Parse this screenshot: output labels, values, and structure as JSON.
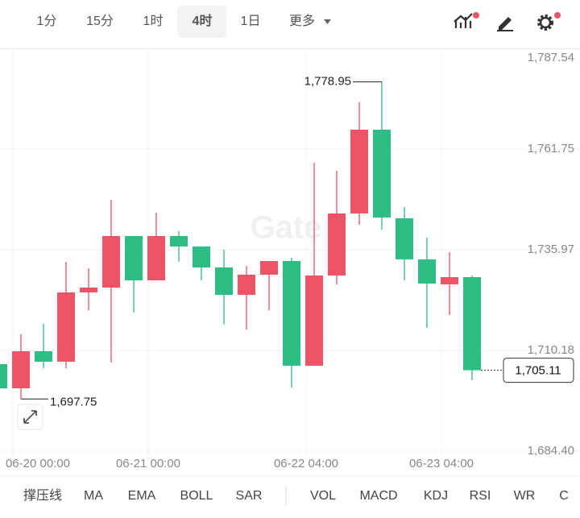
{
  "toolbar": {
    "intervals": [
      "1分",
      "15分",
      "1时",
      "4时",
      "1日"
    ],
    "selected": "4时",
    "more": "更多"
  },
  "indicators": [
    "撑压线",
    "MA",
    "EMA",
    "BOLL",
    "SAR",
    "VOL",
    "MACD",
    "KDJ",
    "RSI",
    "WR",
    "C"
  ],
  "chart_data": {
    "type": "candlestick",
    "watermark": "Gate",
    "x": [
      "06-20 00:00",
      null,
      null,
      null,
      null,
      null,
      "06-21 00:00",
      null,
      null,
      null,
      null,
      null,
      null,
      "06-22 04:00",
      null,
      null,
      null,
      null,
      null,
      "06-23 04:00",
      null,
      null
    ],
    "open": [
      1706.68,
      1700.49,
      1709.98,
      1707.3,
      1725.04,
      1726.28,
      1739.48,
      1728.13,
      1739.48,
      1736.8,
      1731.43,
      1724.42,
      1729.58,
      1733.08,
      1706.27,
      1729.37,
      1745.25,
      1766.71,
      1744.02,
      1733.5,
      1727.1,
      1728.96
    ],
    "high": [
      1706.68,
      1714.31,
      1717.0,
      1732.88,
      1731.22,
      1748.76,
      1739.48,
      1745.46,
      1740.72,
      1736.8,
      1735.97,
      1731.85,
      1733.08,
      1733.91,
      1758.25,
      1756.19,
      1773.72,
      1778.95,
      1746.9,
      1739.07,
      1735.35,
      1729.37
    ],
    "low": [
      1700.49,
      1697.75,
      1705.65,
      1705.65,
      1720.5,
      1707.09,
      1719.88,
      1728.13,
      1732.88,
      1728.13,
      1716.79,
      1715.55,
      1720.5,
      1700.7,
      1706.27,
      1727.1,
      1742.37,
      1741.13,
      1728.13,
      1715.96,
      1719.26,
      1702.56
    ],
    "close": [
      1700.49,
      1709.98,
      1707.3,
      1725.04,
      1726.28,
      1739.48,
      1728.13,
      1739.48,
      1736.8,
      1731.43,
      1724.42,
      1729.58,
      1733.08,
      1706.27,
      1729.37,
      1745.25,
      1766.71,
      1744.22,
      1733.5,
      1727.31,
      1728.96,
      1705.11
    ],
    "up_color": "#ef5466",
    "down_color": "#2ebd85",
    "ylim": [
      1684.4,
      1787.54
    ],
    "yticks": [
      {
        "value": 1684.4,
        "label": "1,684.40"
      },
      {
        "value": 1710.18,
        "label": "1,710.18"
      },
      {
        "value": 1735.97,
        "label": "1,735.97"
      },
      {
        "value": 1761.75,
        "label": "1,761.75"
      },
      {
        "value": 1787.54,
        "label": "1,787.54"
      }
    ],
    "grid": true,
    "max_label": {
      "value": 1778.95,
      "label": "1,778.95"
    },
    "min_label": {
      "value": 1697.75,
      "label": "1,697.75"
    },
    "last_price": {
      "value": 1705.11,
      "label": "1,705.11"
    }
  }
}
